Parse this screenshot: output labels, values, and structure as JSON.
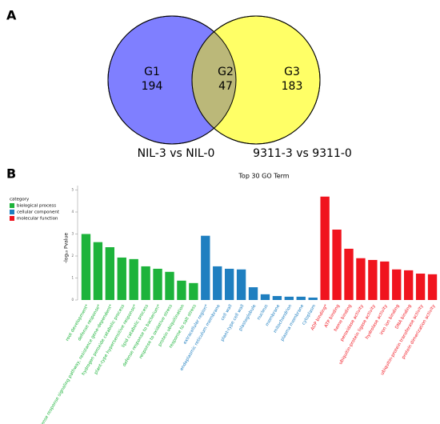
{
  "chart_data": [
    {
      "type": "venn",
      "panel_label": "A",
      "sets": [
        {
          "name": "NIL-3 vs NIL-0",
          "color": "#7f7fff"
        },
        {
          "name": "9311-3 vs 9311-0",
          "color": "#ffff66"
        }
      ],
      "overlap_color": "#bbb879",
      "regions": [
        {
          "name": "G1",
          "value": 194
        },
        {
          "name": "G2",
          "value": 47
        },
        {
          "name": "G3",
          "value": 183
        }
      ]
    },
    {
      "type": "bar",
      "panel_label": "B",
      "title": "Top 30 GO Term",
      "ylabel": "-log₁₀ Pvalue",
      "legend_title": "category",
      "ylim": [
        0,
        5.2
      ],
      "yticks": [
        0,
        1,
        2,
        3,
        4,
        5
      ],
      "series": [
        {
          "name": "biological process",
          "color": "#1db33b",
          "categories": [
            "root development*",
            "defense response*",
            "defense response signaling pathway, resistance gene-dependent*",
            "hydrogen peroxide catabolic process",
            "plant-type hypersensitive response*",
            "lipid catabolic process",
            "defense response to bacterium*",
            "response to oxidative stress",
            "protein ubiquitination",
            "response to salt stress"
          ],
          "values": [
            3.0,
            2.63,
            2.4,
            1.93,
            1.86,
            1.53,
            1.42,
            1.28,
            0.88,
            0.77
          ]
        },
        {
          "name": "cellular component",
          "color": "#1f7fc0",
          "categories": [
            "extracellular region*",
            "endoplasmic reticulum membrane",
            "cell wall",
            "plant-type cell wall",
            "plastoglobule",
            "nucleus",
            "membrane",
            "mitochondrion",
            "plasma membrane",
            "cytoplasm"
          ],
          "values": [
            2.92,
            1.53,
            1.42,
            1.39,
            0.58,
            0.26,
            0.18,
            0.15,
            0.15,
            0.11
          ]
        },
        {
          "name": "molecular function",
          "color": "#f0141e",
          "categories": [
            "ADP binding*",
            "ATP binding",
            "heme binding",
            "peroxidase activity",
            "ubiquitin-protein ligase activity",
            "hydrolase activity",
            "iron ion binding",
            "DNA binding",
            "ubiquitin-protein transferase activity",
            "protein dimerization activity"
          ],
          "values": [
            4.7,
            3.2,
            2.33,
            1.9,
            1.82,
            1.75,
            1.39,
            1.35,
            1.2,
            1.17
          ]
        }
      ]
    }
  ]
}
